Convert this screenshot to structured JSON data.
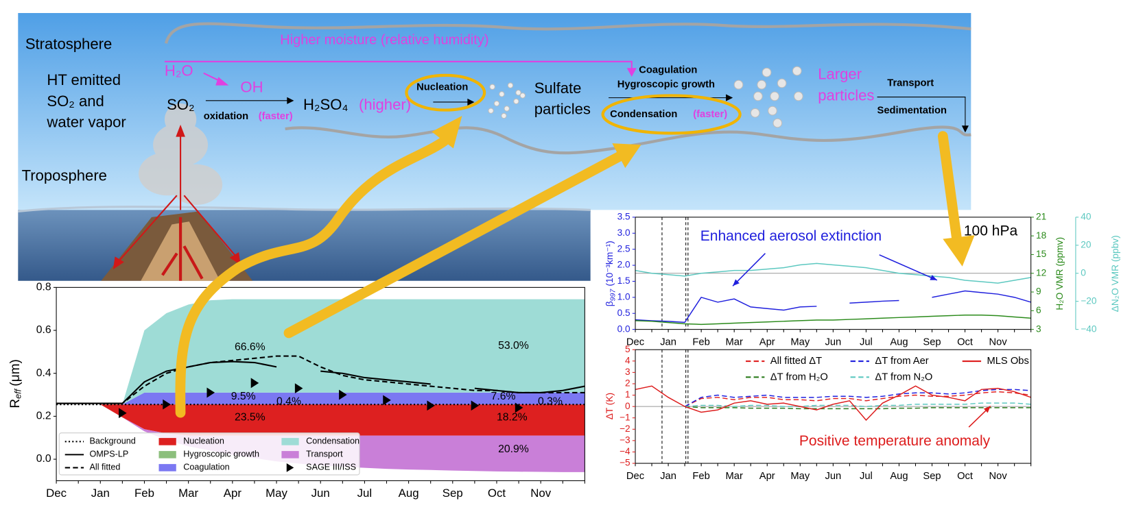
{
  "diagram": {
    "stratosphere": "Stratosphere",
    "troposphere": "Troposphere",
    "emitted": [
      "HT emitted",
      "SO₂ and",
      "water vapor"
    ],
    "h2o": "H₂O",
    "oh": "OH",
    "so2": "SO₂",
    "oxidation": "oxidation",
    "oxidation_note": "(faster)",
    "h2so4": "H₂SO₄",
    "h2so4_note": "(higher)",
    "moisture": "Higher moisture (relative humidity)",
    "nucleation": "Nucleation",
    "sulfate": [
      "Sulfate",
      "particles"
    ],
    "coagulation": "Coagulation",
    "hygroscopic": "Hygroscopic growth",
    "condensation": "Condensation",
    "condensation_note": "(faster)",
    "larger": [
      "Larger",
      "particles"
    ],
    "transport": "Transport",
    "sedimentation": "Sedimentation"
  },
  "chart_data": [
    {
      "type": "area",
      "categories": [
        "Dec",
        null,
        "Jan",
        null,
        "Feb",
        null,
        "Mar",
        null,
        "Apr",
        null,
        "May",
        null,
        "Jun",
        null,
        "Jul",
        null,
        "Aug",
        null,
        "Sep",
        null,
        "Oct",
        null,
        "Nov",
        null,
        null
      ],
      "ylabel": "R",
      "ylabel_sub": "eff",
      "ylabel_unit": "(μm)",
      "ylim": [
        -0.1,
        0.8
      ],
      "yticks": [
        {
          "value": 0,
          "label": "0.0"
        },
        {
          "value": 0.2,
          "label": "0.2"
        },
        {
          "value": 0.4,
          "label": "0.4"
        },
        {
          "value": 0.6,
          "label": "0.6"
        },
        {
          "value": 0.8,
          "label": "0.8"
        }
      ],
      "series": [
        {
          "name": "Background",
          "type": "line",
          "style": "dotted",
          "color": "#000000",
          "values": [
            0.255,
            0.255,
            0.255,
            0.255,
            0.255,
            0.255,
            0.255,
            0.255,
            0.255,
            0.255,
            0.255,
            0.255,
            0.255,
            0.255,
            0.255,
            0.255,
            0.255,
            0.255,
            0.255,
            0.255,
            0.255,
            0.255,
            0.255,
            0.255,
            0.255
          ]
        },
        {
          "name": "OMPS-LP",
          "type": "line",
          "color": "#000000",
          "values": [
            0.26,
            0.26,
            0.26,
            0.26,
            0.36,
            0.41,
            0.43,
            0.45,
            0.455,
            0.45,
            0.43,
            null,
            0.41,
            0.4,
            0.38,
            0.37,
            0.36,
            0.35,
            null,
            0.33,
            0.32,
            0.31,
            0.31,
            0.32,
            0.34
          ]
        },
        {
          "name": "All fitted",
          "type": "line",
          "style": "dashed",
          "color": "#000000",
          "values": [
            0.26,
            0.26,
            0.26,
            0.26,
            0.34,
            0.4,
            0.43,
            0.45,
            0.46,
            0.47,
            0.48,
            0.48,
            0.43,
            0.39,
            0.37,
            0.36,
            0.35,
            0.34,
            0.33,
            0.32,
            0.32,
            0.31,
            0.31,
            0.31,
            0.31
          ]
        },
        {
          "name": "Nucleation",
          "type": "area",
          "color": "#dd2020",
          "values": [
            0,
            0,
            0,
            -0.06,
            -0.115,
            -0.135,
            -0.145,
            -0.145,
            -0.145,
            -0.145,
            -0.145,
            -0.145,
            -0.145,
            -0.145,
            -0.145,
            -0.145,
            -0.145,
            -0.145,
            -0.145,
            -0.145,
            -0.145,
            -0.145,
            -0.145,
            -0.145,
            -0.145
          ]
        },
        {
          "name": "Hygroscopic growth",
          "type": "area",
          "color": "#8cbf7c",
          "values": [
            0,
            0,
            0,
            0,
            0,
            0,
            0,
            0,
            0,
            0,
            0,
            0,
            0,
            0,
            0,
            0,
            0,
            0,
            0,
            0,
            0,
            0,
            0,
            0,
            0
          ]
        },
        {
          "name": "Coagulation",
          "type": "area",
          "color": "#7b78f2",
          "values": [
            0,
            0,
            0,
            0,
            0.055,
            0.055,
            0.055,
            0.055,
            0.055,
            0.055,
            0.055,
            0.055,
            0.055,
            0.055,
            0.055,
            0.055,
            0.055,
            0.055,
            0.055,
            0.055,
            0.055,
            0.055,
            0.055,
            0.055,
            0.055
          ]
        },
        {
          "name": "Condensation",
          "type": "area",
          "color": "#9edcd6",
          "values": [
            0,
            0,
            0,
            0,
            0.29,
            0.37,
            0.41,
            0.43,
            0.435,
            0.435,
            0.435,
            0.435,
            0.435,
            0.435,
            0.435,
            0.435,
            0.435,
            0.435,
            0.435,
            0.435,
            0.435,
            0.435,
            0.435,
            0.435,
            0.435
          ]
        },
        {
          "name": "Transport",
          "type": "area",
          "color": "#c97fd8",
          "values": [
            0,
            0,
            0,
            0,
            -0.01,
            -0.03,
            -0.05,
            -0.07,
            -0.09,
            -0.105,
            -0.12,
            -0.13,
            -0.14,
            -0.145,
            -0.15,
            -0.155,
            -0.158,
            -0.16,
            -0.163,
            -0.165,
            -0.167,
            -0.168,
            -0.169,
            -0.17,
            -0.17
          ]
        },
        {
          "name": "SAGE III/ISS",
          "type": "scatter",
          "color": "#000000",
          "values": [
            null,
            null,
            null,
            0.215,
            null,
            0.255,
            null,
            0.31,
            null,
            0.355,
            null,
            0.33,
            null,
            0.3,
            null,
            0.275,
            null,
            0.25,
            null,
            0.25,
            null,
            0.24,
            null,
            null,
            null
          ]
        }
      ],
      "annotations": [
        "66.6%",
        "53.0%",
        "9.5%",
        "0.4%",
        "7.6%",
        "0.3%",
        "23.5%",
        "18.2%",
        "20.9%"
      ],
      "legend": "lower left"
    },
    {
      "type": "line",
      "categories": [
        "Dec",
        null,
        "Jan",
        null,
        "Feb",
        null,
        "Mar",
        null,
        "Apr",
        null,
        "May",
        null,
        "Jun",
        null,
        "Jul",
        null,
        "Aug",
        null,
        "Sep",
        null,
        "Oct",
        null,
        "Nov",
        null,
        null
      ],
      "ylabel": "β",
      "ylabel_sub": "997",
      "ylabel_unit": "(10⁻³km⁻¹)",
      "y2label": "H₂O VMR (ppmv)",
      "y3label": "ΔN₂O VMR (ppbv)",
      "ycolor": "#1f1fdd",
      "y2color": "#2a8a1a",
      "y3color": "#5cc8c0",
      "ylim": [
        0,
        3.5
      ],
      "yticks": [
        {
          "value": 0,
          "label": "0.0"
        },
        {
          "value": 0.5,
          "label": "0.5"
        },
        {
          "value": 1,
          "label": "1.0"
        },
        {
          "value": 1.5,
          "label": "1.5"
        },
        {
          "value": 2,
          "label": "2.0"
        },
        {
          "value": 2.5,
          "label": "2.5"
        },
        {
          "value": 3,
          "label": "3.0"
        },
        {
          "value": 3.5,
          "label": "3.5"
        }
      ],
      "y2lim": [
        3,
        21
      ],
      "y2ticks": [
        3,
        6,
        9,
        12,
        15,
        18,
        21
      ],
      "y3lim": [
        -40,
        40
      ],
      "y3ticks": [
        {
          "value": -40,
          "label": "−40"
        },
        {
          "value": -20,
          "label": "−20"
        },
        0,
        20,
        40
      ],
      "series": [
        {
          "name": "β997",
          "axis": "y",
          "color": "#1f1fdd",
          "values": [
            0.3,
            0.27,
            0.25,
            0.22,
            1.0,
            0.85,
            0.95,
            0.7,
            0.65,
            0.6,
            0.7,
            0.72,
            null,
            0.82,
            0.85,
            0.88,
            0.9,
            null,
            1.0,
            1.1,
            1.2,
            1.15,
            1.1,
            1.0,
            0.85
          ]
        },
        {
          "name": "H₂O",
          "axis": "y2",
          "color": "#2a8a1a",
          "values": [
            4.4,
            4.3,
            4.1,
            3.9,
            3.8,
            3.9,
            4.0,
            4.1,
            4.2,
            4.3,
            4.4,
            4.5,
            4.5,
            4.6,
            4.7,
            4.8,
            4.9,
            5.0,
            5.1,
            5.2,
            5.3,
            5.3,
            5.2,
            5.0,
            4.8
          ]
        },
        {
          "name": "ΔN₂O",
          "axis": "y3",
          "color": "#5cc8c0",
          "values": [
            2,
            0,
            -1,
            -2,
            0,
            1,
            2,
            2,
            3,
            4,
            6,
            7,
            6,
            5,
            4,
            2,
            0,
            -1,
            -2,
            -3,
            -5,
            -6,
            -7,
            -5,
            -3
          ]
        }
      ],
      "annotations": [
        {
          "text": "Enhanced aerosol extinction",
          "color": "#1f1fdd"
        },
        {
          "text": "100 hPa",
          "color": "#000000"
        }
      ]
    },
    {
      "type": "line",
      "categories": [
        "Dec",
        null,
        "Jan",
        null,
        "Feb",
        null,
        "Mar",
        null,
        "Apr",
        null,
        "May",
        null,
        "Jun",
        null,
        "Jul",
        null,
        "Aug",
        null,
        "Sep",
        null,
        "Oct",
        null,
        "Nov",
        null,
        null
      ],
      "ylabel": "ΔT (K)",
      "ycolor": "#dd1c1c",
      "ylim": [
        -5,
        5
      ],
      "yticks": [
        {
          "value": -5,
          "label": "−5"
        },
        {
          "value": -4,
          "label": "−4"
        },
        {
          "value": -3,
          "label": "−3"
        },
        {
          "value": -2,
          "label": "−2"
        },
        {
          "value": -1,
          "label": "−1"
        },
        0,
        1,
        2,
        3,
        4,
        5
      ],
      "series": [
        {
          "name": "All fitted ΔT",
          "style": "dashed",
          "color": "#e02020",
          "values": [
            null,
            null,
            null,
            0,
            0.7,
            0.8,
            0.6,
            0.8,
            0.8,
            0.6,
            0.6,
            0.5,
            0.7,
            0.7,
            0.5,
            0.7,
            0.9,
            1.0,
            0.9,
            0.9,
            1.0,
            1.2,
            1.3,
            1.2,
            1.0
          ]
        },
        {
          "name": "ΔT from H₂O",
          "style": "dashed",
          "color": "#2a7a1a",
          "values": [
            null,
            null,
            null,
            0,
            -0.1,
            -0.1,
            -0.1,
            -0.15,
            -0.15,
            -0.15,
            -0.2,
            -0.2,
            -0.2,
            -0.2,
            -0.2,
            -0.2,
            -0.15,
            -0.15,
            -0.1,
            -0.1,
            -0.1,
            -0.1,
            -0.1,
            -0.1,
            -0.1
          ]
        },
        {
          "name": "ΔT from Aer",
          "style": "dashed",
          "color": "#1f1fdd",
          "values": [
            null,
            null,
            null,
            0,
            0.8,
            1.0,
            0.8,
            0.9,
            1.0,
            0.8,
            0.8,
            0.8,
            0.9,
            0.9,
            0.8,
            0.9,
            1.1,
            1.2,
            1.2,
            1.1,
            1.2,
            1.4,
            1.5,
            1.5,
            1.4
          ]
        },
        {
          "name": "ΔT from N₂O",
          "style": "dashed",
          "color": "#5cc8c0",
          "values": [
            null,
            null,
            null,
            0,
            0.1,
            0.1,
            0,
            0.1,
            0.1,
            0,
            0,
            0.1,
            0.1,
            0.1,
            0,
            0.1,
            0.1,
            0.2,
            0.2,
            0.2,
            0.2,
            0.3,
            0.3,
            0.3,
            0.2
          ]
        },
        {
          "name": "MLS Obs",
          "color": "#dd1c1c",
          "values": [
            1.5,
            1.8,
            0.8,
            0,
            -0.5,
            -0.3,
            0.3,
            0.5,
            0.2,
            0.3,
            0,
            -0.3,
            0.2,
            0.5,
            -1.2,
            0.3,
            1.0,
            1.8,
            1.0,
            0.8,
            0.5,
            1.5,
            1.6,
            1.3,
            0.8
          ]
        }
      ],
      "annotations": [
        {
          "text": "Positive temperature anomaly",
          "color": "#dd1c1c"
        }
      ],
      "legend": "upper center"
    }
  ]
}
